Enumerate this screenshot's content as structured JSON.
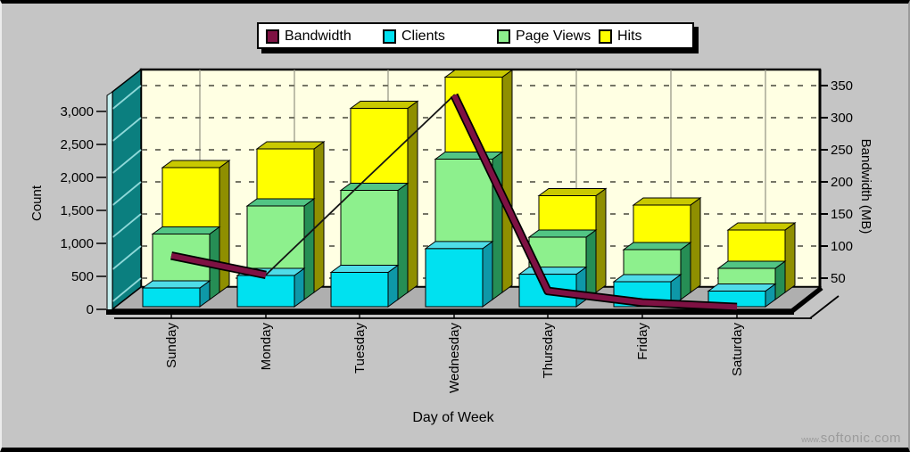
{
  "watermark": {
    "prefix": "www.",
    "domain": "softonic.com"
  },
  "colors": {
    "background": "#C5C5C5",
    "wall_back": "#FFFFE3",
    "wall_left": "#0B7F7F",
    "wall_left_lines": "#8FD9D9",
    "wall_left_edge": "#C6F1F1",
    "floor": "#AFAFAF",
    "gridline": "#757565",
    "day_gridline": "#9A9A8A",
    "frame": "#000000",
    "bandwidth_line": "#7E1143",
    "clients": {
      "front": "#00E1F0",
      "top": "#4FDCE8",
      "side": "#0E98A8"
    },
    "page_views": {
      "front": "#8DF08D",
      "top": "#52C584",
      "side": "#268E55"
    },
    "hits": {
      "front": "#FFFF00",
      "top": "#C9C900",
      "side": "#8F8F00"
    },
    "axis_text": "#000000",
    "watermark_text": "#9B9B9B"
  },
  "chart_data": {
    "type": "bar",
    "subtype": "3d-stepped-bars-with-line-overlay",
    "categories": [
      "Sunday",
      "Monday",
      "Tuesday",
      "Wednesday",
      "Thursday",
      "Friday",
      "Saturday"
    ],
    "series": [
      {
        "name": "Bandwidth",
        "key": "bandwidth",
        "type": "line",
        "axis": "right",
        "values": [
          85,
          55,
          195,
          335,
          30,
          12,
          5
        ]
      },
      {
        "name": "Clients",
        "key": "clients",
        "type": "bar",
        "axis": "left",
        "values": [
          300,
          500,
          550,
          930,
          520,
          400,
          250
        ]
      },
      {
        "name": "Page Views",
        "key": "page_views",
        "type": "bar",
        "axis": "left",
        "values": [
          1050,
          1500,
          1750,
          2250,
          1000,
          800,
          500
        ]
      },
      {
        "name": "Hits",
        "key": "hits",
        "type": "bar",
        "axis": "left",
        "values": [
          2000,
          2300,
          2950,
          3450,
          1550,
          1400,
          1000
        ]
      }
    ],
    "left_axis": {
      "title": "Count",
      "tick_labels": [
        "0",
        "500",
        "1,000",
        "1,500",
        "2,000",
        "2,500",
        "3,000"
      ],
      "tick_values": [
        0,
        500,
        1000,
        1500,
        2000,
        2500,
        3000
      ],
      "range": [
        0,
        3500
      ]
    },
    "right_axis": {
      "title": "Bandwidth (MB)",
      "tick_labels": [
        "50",
        "100",
        "150",
        "200",
        "250",
        "300",
        "350"
      ],
      "tick_values": [
        50,
        100,
        150,
        200,
        250,
        300,
        350
      ],
      "range": [
        0,
        375
      ]
    },
    "x_axis": {
      "title": "Day of Week"
    },
    "legend": {
      "position": "top-center",
      "entries": [
        "Bandwidth",
        "Clients",
        "Page Views",
        "Hits"
      ]
    },
    "grid": {
      "horizontal": "dashed",
      "vertical": "solid"
    }
  }
}
